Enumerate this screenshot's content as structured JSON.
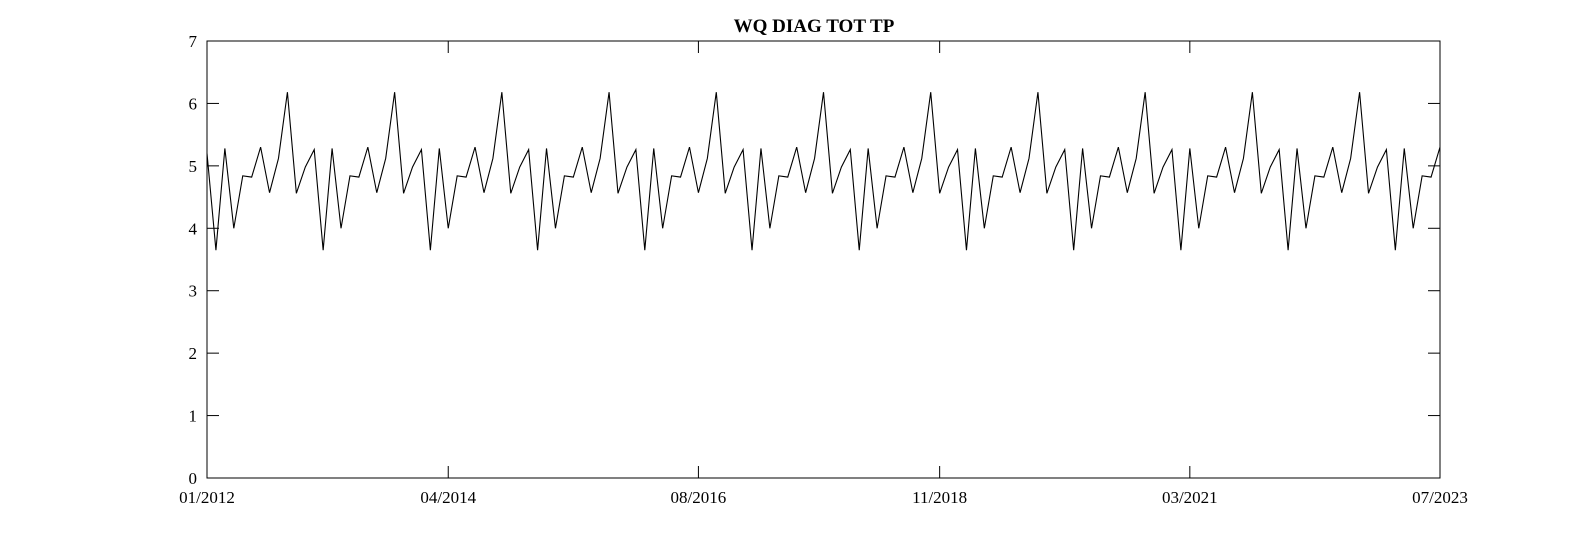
{
  "chart_data": {
    "type": "line",
    "title": "WQ DIAG TOT TP",
    "xlabel": "",
    "ylabel": "",
    "xlim": [
      "2012-01",
      "2023-07"
    ],
    "ylim": [
      0,
      7
    ],
    "x_tick_labels": [
      "01/2012",
      "04/2014",
      "08/2016",
      "11/2018",
      "03/2021",
      "07/2023"
    ],
    "y_tick_labels": [
      "0",
      "1",
      "2",
      "3",
      "4",
      "5",
      "6",
      "7"
    ],
    "grid": false,
    "line_color": "#000000",
    "series": [
      {
        "x": [
          "2012-01",
          "2012-02",
          "2012-03",
          "2012-04",
          "2012-05",
          "2012-06",
          "2012-07",
          "2012-08",
          "2012-09",
          "2012-10",
          "2012-11",
          "2012-12",
          "2013-01",
          "2013-02",
          "2013-03",
          "2013-04",
          "2013-05",
          "2013-06",
          "2013-07",
          "2013-08",
          "2013-09",
          "2013-10",
          "2013-11",
          "2013-12",
          "2014-01",
          "2014-02",
          "2014-03",
          "2014-04",
          "2014-05",
          "2014-06",
          "2014-07",
          "2014-08",
          "2014-09",
          "2014-10",
          "2014-11",
          "2014-12",
          "2015-01",
          "2015-02",
          "2015-03",
          "2015-04",
          "2015-05",
          "2015-06",
          "2015-07",
          "2015-08",
          "2015-09",
          "2015-10",
          "2015-11",
          "2015-12",
          "2016-01",
          "2016-02",
          "2016-03",
          "2016-04",
          "2016-05",
          "2016-06",
          "2016-07",
          "2016-08",
          "2016-09",
          "2016-10",
          "2016-11",
          "2016-12",
          "2017-01",
          "2017-02",
          "2017-03",
          "2017-04",
          "2017-05",
          "2017-06",
          "2017-07",
          "2017-08",
          "2017-09",
          "2017-10",
          "2017-11",
          "2017-12",
          "2018-01",
          "2018-02",
          "2018-03",
          "2018-04",
          "2018-05",
          "2018-06",
          "2018-07",
          "2018-08",
          "2018-09",
          "2018-10",
          "2018-11",
          "2018-12",
          "2019-01",
          "2019-02",
          "2019-03",
          "2019-04",
          "2019-05",
          "2019-06",
          "2019-07",
          "2019-08",
          "2019-09",
          "2019-10",
          "2019-11",
          "2019-12",
          "2020-01",
          "2020-02",
          "2020-03",
          "2020-04",
          "2020-05",
          "2020-06",
          "2020-07",
          "2020-08",
          "2020-09",
          "2020-10",
          "2020-11",
          "2020-12",
          "2021-01",
          "2021-02",
          "2021-03",
          "2021-04",
          "2021-05",
          "2021-06",
          "2021-07",
          "2021-08",
          "2021-09",
          "2021-10",
          "2021-11",
          "2021-12",
          "2022-01",
          "2022-02",
          "2022-03",
          "2022-04",
          "2022-05",
          "2022-06",
          "2022-07",
          "2022-08",
          "2022-09",
          "2022-10",
          "2022-11",
          "2022-12",
          "2023-01",
          "2023-02",
          "2023-03",
          "2023-04",
          "2023-05",
          "2023-06",
          "2023-07"
        ],
        "y": [
          5.2,
          3.65,
          5.28,
          4.0,
          4.84,
          4.82,
          5.3,
          4.57,
          5.12,
          6.18,
          4.56,
          4.98,
          5.26,
          3.65,
          5.28,
          4.0,
          4.84,
          4.82,
          5.3,
          4.57,
          5.12,
          6.18,
          4.56,
          4.98,
          5.26,
          3.65,
          5.28,
          4.0,
          4.84,
          4.82,
          5.3,
          4.57,
          5.12,
          6.18,
          4.56,
          4.98,
          5.26,
          3.65,
          5.28,
          4.0,
          4.84,
          4.82,
          5.3,
          4.57,
          5.12,
          6.18,
          4.56,
          4.98,
          5.26,
          3.65,
          5.28,
          4.0,
          4.84,
          4.82,
          5.3,
          4.57,
          5.12,
          6.18,
          4.56,
          4.98,
          5.26,
          3.65,
          5.28,
          4.0,
          4.84,
          4.82,
          5.3,
          4.57,
          5.12,
          6.18,
          4.56,
          4.98,
          5.26,
          3.65,
          5.28,
          4.0,
          4.84,
          4.82,
          5.3,
          4.57,
          5.12,
          6.18,
          4.56,
          4.98,
          5.26,
          3.65,
          5.28,
          4.0,
          4.84,
          4.82,
          5.3,
          4.57,
          5.12,
          6.18,
          4.56,
          4.98,
          5.26,
          3.65,
          5.28,
          4.0,
          4.84,
          4.82,
          5.3,
          4.57,
          5.12,
          6.18,
          4.56,
          4.98,
          5.26,
          3.65,
          5.28,
          4.0,
          4.84,
          4.82,
          5.3,
          4.57,
          5.12,
          6.18,
          4.56,
          4.98,
          5.26,
          3.65,
          5.28,
          4.0,
          4.84,
          4.82,
          5.3,
          4.57,
          5.12,
          6.18,
          4.56,
          4.98,
          5.26,
          3.65,
          5.28,
          4.0,
          4.84,
          4.82,
          5.3
        ]
      }
    ]
  }
}
